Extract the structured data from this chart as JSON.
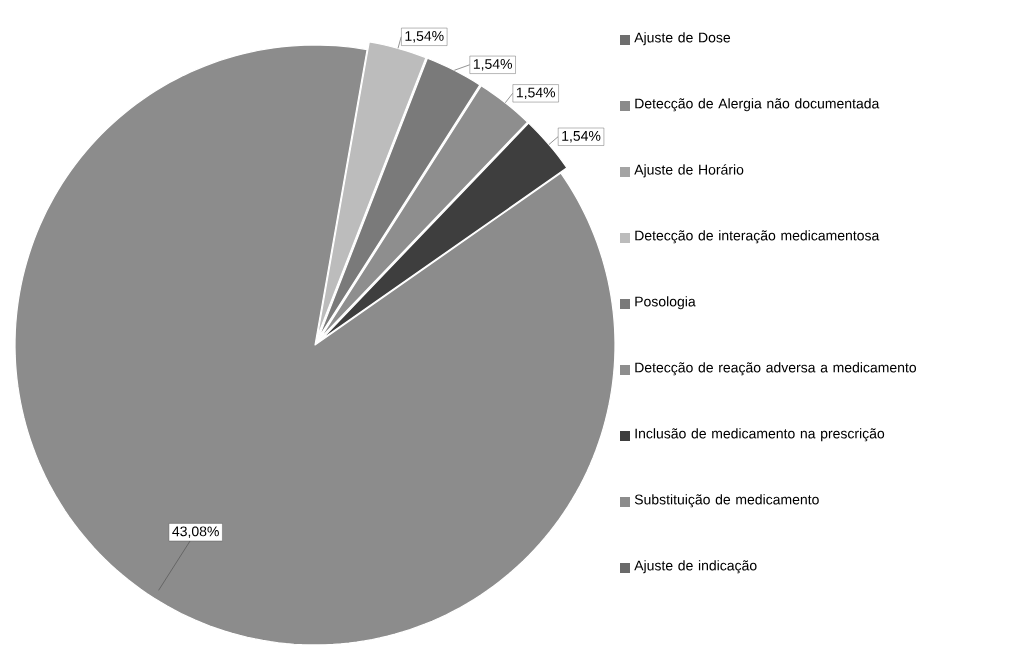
{
  "chart_data": {
    "type": "pie",
    "categories": [
      "Ajuste de Dose",
      "Detecção de Alergia não documentada",
      "Ajuste de Horário",
      "Detecção de interação medicamentosa",
      "Posologia",
      "Detecção de reação adversa a medicamento",
      "Inclusão de medicamento na prescrição",
      "Substituição de medicamento",
      "Ajuste de indicação"
    ],
    "values": [
      null,
      null,
      null,
      1.54,
      1.54,
      1.54,
      1.54,
      43.08,
      null
    ],
    "colors": [
      "#6e6e6e",
      "#8a8a8a",
      "#a4a4a4",
      "#bcbcbc",
      "#7a7a7a",
      "#8e8e8e",
      "#3e3e3e",
      "#8c8c8c",
      "#6a6a6a"
    ],
    "value_labels": [
      null,
      null,
      null,
      "1,54%",
      "1,54%",
      "1,54%",
      "1,54%",
      "43,08%",
      null
    ],
    "legend": "right"
  }
}
